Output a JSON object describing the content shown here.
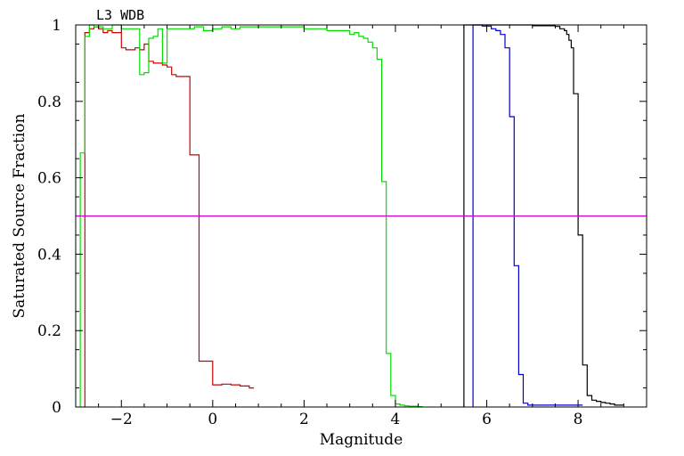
{
  "chart_data": {
    "type": "line",
    "title": "",
    "annotation": "L3 WDB",
    "xlabel": "Magnitude",
    "ylabel": "Saturated Source Fraction",
    "xlim": [
      -3,
      9.5
    ],
    "ylim": [
      0,
      1
    ],
    "x_ticks": [
      -2,
      0,
      2,
      4,
      6,
      8
    ],
    "x_tick_labels": [
      "−2",
      "0",
      "2",
      "4",
      "6",
      "8"
    ],
    "y_ticks": [
      0,
      0.2,
      0.4,
      0.6,
      0.8,
      1
    ],
    "y_tick_labels": [
      "0",
      "0.2",
      "0.4",
      "0.6",
      "0.8",
      "1"
    ],
    "grid": false,
    "step": true,
    "hline": {
      "y": 0.5,
      "color": "#cc00cc"
    },
    "series": [
      {
        "color": "#000000",
        "x": [
          5.5,
          6.5,
          7.0,
          7.5,
          7.6,
          7.7,
          7.75,
          7.8,
          7.85,
          7.9,
          8.0,
          8.1,
          8.2,
          8.3,
          8.4,
          8.5,
          8.6,
          8.7,
          8.8,
          8.9
        ],
        "y": [
          1.0,
          1.0,
          0.998,
          0.996,
          0.99,
          0.985,
          0.975,
          0.96,
          0.94,
          0.82,
          0.45,
          0.11,
          0.03,
          0.018,
          0.015,
          0.012,
          0.01,
          0.008,
          0.005,
          0.005
        ]
      },
      {
        "color": "#0000cc",
        "x": [
          5.7,
          5.9,
          6.1,
          6.2,
          6.3,
          6.4,
          6.5,
          6.6,
          6.7,
          6.8,
          6.9,
          7.0,
          7.5,
          8.0
        ],
        "y": [
          1.0,
          0.997,
          0.99,
          0.985,
          0.975,
          0.94,
          0.76,
          0.37,
          0.085,
          0.01,
          0.005,
          0.005,
          0.005,
          0.005
        ]
      },
      {
        "color": "#cc0000",
        "x": [
          -2.8,
          -2.7,
          -2.6,
          -2.5,
          -2.4,
          -2.3,
          -2.2,
          -2.1,
          -2.0,
          -1.9,
          -1.8,
          -1.7,
          -1.6,
          -1.5,
          -1.4,
          -1.3,
          -1.2,
          -1.1,
          -1.0,
          -0.9,
          -0.8,
          -0.7,
          -0.6,
          -0.5,
          -0.4,
          -0.3,
          -0.2,
          0.0,
          0.2,
          0.4,
          0.6,
          0.8
        ],
        "y": [
          0.98,
          0.99,
          0.995,
          0.99,
          0.98,
          0.985,
          0.98,
          0.98,
          0.94,
          0.935,
          0.935,
          0.94,
          0.935,
          0.95,
          0.905,
          0.9,
          0.9,
          0.895,
          0.89,
          0.87,
          0.865,
          0.865,
          0.865,
          0.66,
          0.66,
          0.12,
          0.12,
          0.058,
          0.06,
          0.058,
          0.055,
          0.05
        ]
      },
      {
        "color": "#00dd00",
        "x": [
          -2.9,
          -2.8,
          -2.7,
          -2.6,
          -2.4,
          -2.2,
          -2.0,
          -1.9,
          -1.8,
          -1.6,
          -1.5,
          -1.4,
          -1.3,
          -1.2,
          -1.1,
          -1.0,
          -0.9,
          -0.8,
          -0.6,
          -0.4,
          -0.2,
          0.0,
          0.2,
          0.4,
          0.6,
          0.8,
          1.0,
          1.5,
          2.0,
          2.5,
          3.0,
          3.1,
          3.2,
          3.3,
          3.4,
          3.5,
          3.6,
          3.7,
          3.8,
          3.9,
          4.0,
          4.1,
          4.2,
          4.3,
          4.5
        ],
        "y": [
          0.665,
          0.97,
          1.0,
          0.995,
          0.99,
          1.0,
          0.99,
          0.99,
          0.99,
          0.87,
          0.875,
          0.965,
          0.97,
          0.99,
          0.9,
          0.99,
          0.99,
          0.99,
          0.99,
          0.995,
          0.985,
          0.99,
          0.995,
          0.99,
          0.995,
          0.995,
          0.995,
          0.995,
          0.99,
          0.985,
          0.975,
          0.98,
          0.97,
          0.965,
          0.955,
          0.94,
          0.91,
          0.59,
          0.14,
          0.03,
          0.008,
          0.005,
          0.003,
          0.002,
          0.001
        ]
      }
    ]
  }
}
